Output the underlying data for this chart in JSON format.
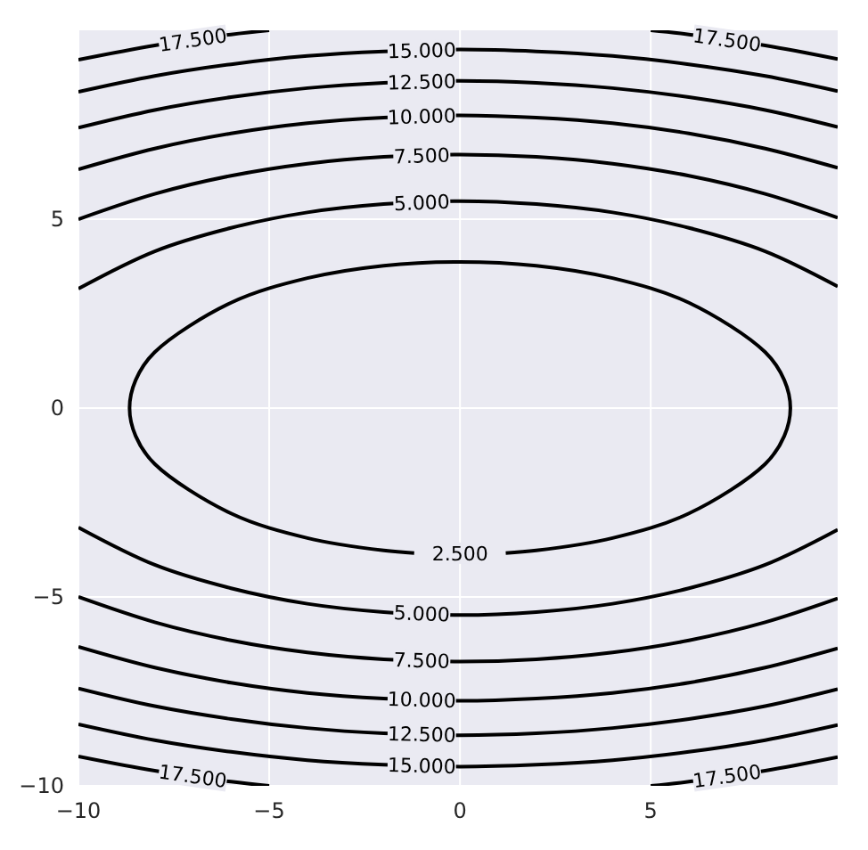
{
  "chart_data": {
    "type": "line",
    "xlim": [
      -10,
      9.9
    ],
    "ylim": [
      -10,
      10
    ],
    "xticks": [
      {
        "value": -10,
        "label": "−10"
      },
      {
        "value": -5,
        "label": "−5"
      },
      0,
      5
    ],
    "yticks": [
      {
        "value": -10,
        "label": "−10"
      },
      {
        "value": -5,
        "label": "−5"
      },
      0,
      5
    ],
    "grid": true,
    "marker": "none",
    "line_style": "solid",
    "series": [
      {
        "name": "2.500",
        "color": "#000000",
        "x": [
          1.2,
          2,
          4,
          6,
          8,
          8.5,
          8.66,
          8.5,
          8,
          6,
          4,
          2,
          0,
          -2,
          -4,
          -6,
          -8,
          -8.5,
          -8.66,
          -8.5,
          -8,
          -6,
          -4,
          -2,
          -1.2
        ],
        "values": [
          -3.84,
          -3.77,
          -3.44,
          -2.79,
          -1.48,
          -0.74,
          0,
          0.74,
          1.48,
          2.79,
          3.44,
          3.77,
          3.87,
          3.77,
          3.44,
          2.79,
          1.48,
          0.74,
          0,
          -0.74,
          -1.48,
          -2.79,
          -3.44,
          -3.77,
          -3.84
        ]
      },
      {
        "name": "5.000",
        "color": "#000000",
        "x": [
          -10,
          -8,
          -6,
          -4,
          -2,
          0,
          2,
          4,
          6,
          8,
          9.9
        ],
        "values": [
          3.16,
          4.15,
          4.77,
          5.18,
          5.4,
          5.48,
          5.4,
          5.18,
          4.77,
          4.15,
          3.22
        ]
      },
      {
        "name": "5.000",
        "color": "#000000",
        "x": [
          -10,
          -8,
          -6,
          -4,
          -2,
          0,
          2,
          4,
          6,
          8,
          9.9
        ],
        "values": [
          -3.16,
          -4.15,
          -4.77,
          -5.18,
          -5.4,
          -5.48,
          -5.4,
          -5.18,
          -4.77,
          -4.15,
          -3.22
        ]
      },
      {
        "name": "7.500",
        "color": "#000000",
        "x": [
          -10,
          -8,
          -6,
          -4,
          -2,
          0,
          2,
          4,
          6,
          8,
          9.9
        ],
        "values": [
          5,
          5.67,
          6.15,
          6.47,
          6.65,
          6.71,
          6.65,
          6.47,
          6.15,
          5.67,
          5.04
        ]
      },
      {
        "name": "7.500",
        "color": "#000000",
        "x": [
          -10,
          -8,
          -6,
          -4,
          -2,
          0,
          2,
          4,
          6,
          8,
          9.9
        ],
        "values": [
          -5,
          -5.67,
          -6.15,
          -6.47,
          -6.65,
          -6.71,
          -6.65,
          -6.47,
          -6.15,
          -5.67,
          -5.04
        ]
      },
      {
        "name": "10.000",
        "color": "#000000",
        "x": [
          -10,
          -8,
          -6,
          -4,
          -2,
          0,
          2,
          4,
          6,
          8,
          9.9
        ],
        "values": [
          6.32,
          6.87,
          7.27,
          7.54,
          7.69,
          7.75,
          7.69,
          7.54,
          7.27,
          6.87,
          6.36
        ]
      },
      {
        "name": "10.000",
        "color": "#000000",
        "x": [
          -10,
          -8,
          -6,
          -4,
          -2,
          0,
          2,
          4,
          6,
          8,
          9.9
        ],
        "values": [
          -6.32,
          -6.87,
          -7.27,
          -7.54,
          -7.69,
          -7.75,
          -7.69,
          -7.54,
          -7.27,
          -6.87,
          -6.36
        ]
      },
      {
        "name": "12.500",
        "color": "#000000",
        "x": [
          -10,
          -8,
          -6,
          -4,
          -2,
          0,
          2,
          4,
          6,
          8,
          9.9
        ],
        "values": [
          7.42,
          7.89,
          8.23,
          8.47,
          8.61,
          8.66,
          8.61,
          8.47,
          8.23,
          7.89,
          7.44
        ]
      },
      {
        "name": "12.500",
        "color": "#000000",
        "x": [
          -10,
          -8,
          -6,
          -4,
          -2,
          0,
          2,
          4,
          6,
          8,
          9.9
        ],
        "values": [
          -7.42,
          -7.89,
          -8.23,
          -8.47,
          -8.61,
          -8.66,
          -8.61,
          -8.47,
          -8.23,
          -7.89,
          -7.44
        ]
      },
      {
        "name": "15.000",
        "color": "#000000",
        "x": [
          -10,
          -8,
          -6,
          -4,
          -2,
          0,
          2,
          4,
          6,
          8,
          9.9
        ],
        "values": [
          8.37,
          8.79,
          9.1,
          9.32,
          9.44,
          9.49,
          9.44,
          9.32,
          9.1,
          8.79,
          8.39
        ]
      },
      {
        "name": "15.000",
        "color": "#000000",
        "x": [
          -10,
          -8,
          -6,
          -4,
          -2,
          0,
          2,
          4,
          6,
          8,
          9.9
        ],
        "values": [
          -8.37,
          -8.79,
          -9.1,
          -9.32,
          -9.44,
          -9.49,
          -9.44,
          -9.32,
          -9.1,
          -8.79,
          -8.39
        ]
      },
      {
        "name": "17.500",
        "color": "#000000",
        "x": [
          -10,
          -8,
          -6,
          -5
        ],
        "values": [
          9.22,
          9.6,
          9.89,
          10
        ]
      },
      {
        "name": "17.500",
        "color": "#000000",
        "x": [
          5,
          6,
          8,
          9.9
        ],
        "values": [
          10,
          9.89,
          9.6,
          9.24
        ]
      },
      {
        "name": "17.500",
        "color": "#000000",
        "x": [
          -10,
          -8,
          -6,
          -5
        ],
        "values": [
          -9.22,
          -9.6,
          -9.89,
          -10
        ]
      },
      {
        "name": "17.500",
        "color": "#000000",
        "x": [
          5,
          6,
          8,
          9.9
        ],
        "values": [
          -10,
          -9.89,
          -9.6,
          -9.24
        ]
      }
    ]
  }
}
